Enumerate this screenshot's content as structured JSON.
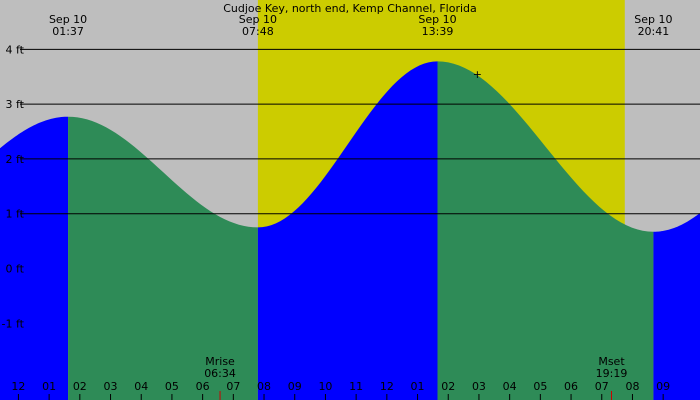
{
  "chart_data": {
    "type": "area",
    "title": "Cudjoe Key, north end, Kemp Channel, Florida",
    "ylabel": "ft",
    "ylim": [
      -2.4,
      4.9
    ],
    "x_unit": "hours since midnight, Sep 10",
    "xlim": [
      -0.6,
      22.2
    ],
    "grid": true,
    "colors": {
      "background_night": "#bebebe",
      "background_day": "#cccc00",
      "rising_tide": "#0000ff",
      "falling_tide": "#2e8b57",
      "gridline": "#000000",
      "moon_tick": "#cc0000"
    },
    "daylight": {
      "start": 7.8,
      "end": 19.75
    },
    "extremes": [
      {
        "label_date": "Sep 10",
        "label_time": "01:37",
        "hour": 1.617,
        "height": 2.77,
        "kind": "high"
      },
      {
        "label_date": "Sep 10",
        "label_time": "07:48",
        "hour": 7.8,
        "height": 0.75,
        "kind": "low"
      },
      {
        "label_date": "Sep 10",
        "label_time": "13:39",
        "hour": 13.65,
        "height": 3.78,
        "kind": "high"
      },
      {
        "label_date": "Sep 10",
        "label_time": "20:41",
        "hour": 20.683,
        "height": 0.67,
        "kind": "low"
      }
    ],
    "y_ticks": [
      {
        "value": 4,
        "label": "4 ft"
      },
      {
        "value": 3,
        "label": "3 ft"
      },
      {
        "value": 2,
        "label": "2 ft"
      },
      {
        "value": 1,
        "label": "1 ft"
      },
      {
        "value": 0,
        "label": "0 ft"
      },
      {
        "value": -1,
        "label": "-1 ft"
      }
    ],
    "x_ticks": [
      {
        "hour": -1,
        "label": "11"
      },
      {
        "hour": 0,
        "label": "12"
      },
      {
        "hour": 1,
        "label": "01"
      },
      {
        "hour": 2,
        "label": "02"
      },
      {
        "hour": 3,
        "label": "03"
      },
      {
        "hour": 4,
        "label": "04"
      },
      {
        "hour": 5,
        "label": "05"
      },
      {
        "hour": 6,
        "label": "06"
      },
      {
        "hour": 7,
        "label": "07"
      },
      {
        "hour": 8,
        "label": "08"
      },
      {
        "hour": 9,
        "label": "09"
      },
      {
        "hour": 10,
        "label": "10"
      },
      {
        "hour": 11,
        "label": "11"
      },
      {
        "hour": 12,
        "label": "12"
      },
      {
        "hour": 13,
        "label": "01"
      },
      {
        "hour": 14,
        "label": "02"
      },
      {
        "hour": 15,
        "label": "03"
      },
      {
        "hour": 16,
        "label": "04"
      },
      {
        "hour": 17,
        "label": "05"
      },
      {
        "hour": 18,
        "label": "06"
      },
      {
        "hour": 19,
        "label": "07"
      },
      {
        "hour": 20,
        "label": "08"
      },
      {
        "hour": 21,
        "label": "09"
      }
    ],
    "moon_events": [
      {
        "label": "Mrise",
        "time": "06:34",
        "hour": 6.567
      },
      {
        "label": "Mset",
        "time": "19:19",
        "hour": 19.317
      }
    ],
    "current_marker": {
      "hour": 14.95,
      "height": 3.55,
      "symbol": "+"
    }
  }
}
